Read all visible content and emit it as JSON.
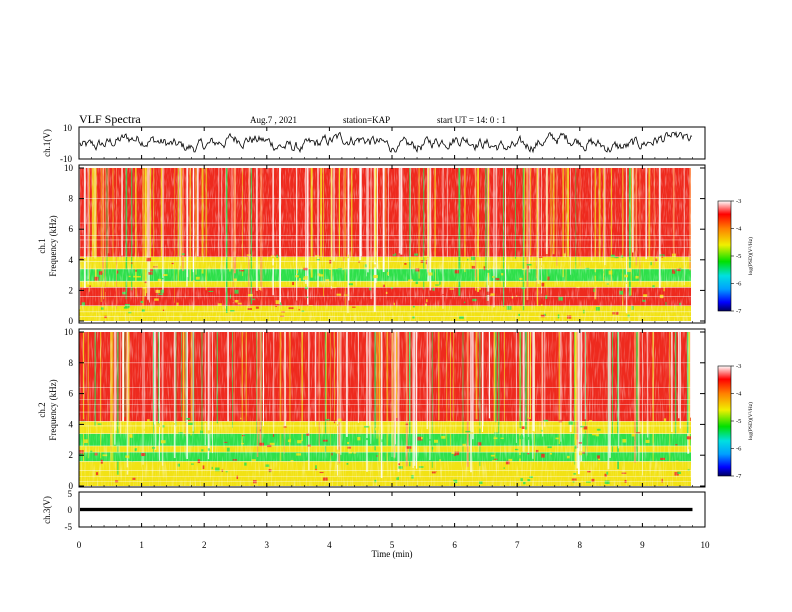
{
  "header": {
    "title": "VLF Spectra",
    "date": "Aug.7 , 2021",
    "station": "station=KAP",
    "start": "start UT =  14: 0  : 1"
  },
  "colorbar": {
    "label": "log(PSD)(V²/Hz)",
    "ticks": [
      "-3",
      "-4",
      "-5",
      "-6",
      "-7"
    ]
  },
  "colors": {
    "spectro_high": "#ee2a1e",
    "spectro_mid": "#f2e214",
    "spectro_low": "#2ee04a",
    "waveform": "#000000"
  },
  "chart_data": [
    {
      "type": "line",
      "name": "ch1-waveform",
      "ylabel": "ch.1(V)",
      "ylim": [
        -10,
        10
      ],
      "yticks": [
        "10",
        "-10"
      ],
      "xlim": [
        0,
        10
      ],
      "x_end": 9.8,
      "description_values": {
        "approx_mean": 0,
        "approx_peak_to_peak": 10
      }
    },
    {
      "type": "heatmap",
      "name": "ch1-spectrogram",
      "ylabel_top": "ch.1",
      "ylabel": "Frequency (kHz)",
      "ylim": [
        0,
        10
      ],
      "yticks": [
        "0",
        "2",
        "4",
        "6",
        "8",
        "10"
      ],
      "xlim": [
        0,
        10
      ],
      "x_end": 9.8,
      "bands": [
        {
          "from": 0,
          "to": 1,
          "level": "mid"
        },
        {
          "from": 1,
          "to": 2.2,
          "level": "high"
        },
        {
          "from": 2.2,
          "to": 2.6,
          "level": "mid"
        },
        {
          "from": 2.6,
          "to": 3.4,
          "level": "low"
        },
        {
          "from": 3.4,
          "to": 4.2,
          "level": "mid"
        },
        {
          "from": 4.2,
          "to": 10,
          "level": "high"
        }
      ],
      "zlim": [
        -7,
        -3
      ]
    },
    {
      "type": "heatmap",
      "name": "ch2-spectrogram",
      "ylabel_top": "ch.2",
      "ylabel": "Frequency (kHz)",
      "ylim": [
        0,
        10
      ],
      "yticks": [
        "0",
        "2",
        "4",
        "6",
        "8",
        "10"
      ],
      "xlim": [
        0,
        10
      ],
      "x_end": 9.8,
      "bands": [
        {
          "from": 0,
          "to": 1.6,
          "level": "mid"
        },
        {
          "from": 1.6,
          "to": 2.2,
          "level": "low"
        },
        {
          "from": 2.2,
          "to": 2.6,
          "level": "mid"
        },
        {
          "from": 2.6,
          "to": 3.4,
          "level": "low"
        },
        {
          "from": 3.4,
          "to": 4.2,
          "level": "mid"
        },
        {
          "from": 4.2,
          "to": 10,
          "level": "high"
        }
      ],
      "zlim": [
        -7,
        -3
      ]
    },
    {
      "type": "line",
      "name": "ch3-waveform",
      "ylabel": "ch.3(V)",
      "ylim": [
        -5,
        5
      ],
      "yticks": [
        "5",
        "0",
        "-5"
      ],
      "xlim": [
        0,
        10
      ],
      "x_end": 9.8,
      "xlabel": "Time (min)",
      "xticks": [
        "0",
        "1",
        "2",
        "3",
        "4",
        "5",
        "6",
        "7",
        "8",
        "9",
        "10"
      ],
      "level_range": [
        -0.5,
        0.5
      ]
    }
  ]
}
